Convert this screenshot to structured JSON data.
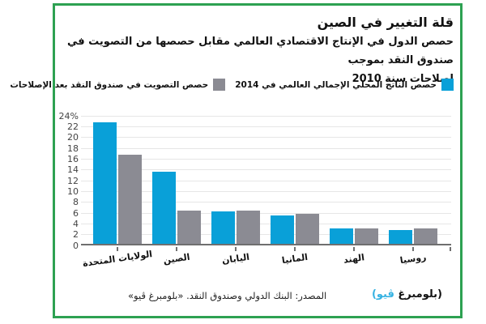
{
  "header": {
    "title": "قلة التغيير في الصين",
    "subtitle_lines": [
      "حصص الدول في الإنتاج الاقتصادي العالمي مقابل حصصها من التصويت في صندوق النقد بموجب",
      "إصلاحات سنة 2010"
    ]
  },
  "legend": {
    "items": [
      {
        "label": "حصص الناتج المحلي الإجمالي العالمي في 2014",
        "color": "#09a0d8"
      },
      {
        "label": "حصص التصويت في صندوق النقد بعد الإصلاحات",
        "color": "#8b8b93"
      }
    ]
  },
  "chart_data": {
    "type": "bar",
    "title": "قلة التغيير في الصين",
    "xlabel": "",
    "ylabel": "",
    "ylim": [
      0,
      24
    ],
    "grid": true,
    "legend_position": "top",
    "categories": [
      "الولايات المتحدة",
      "الصين",
      "اليابان",
      "المانيا",
      "الهند",
      "روسيا"
    ],
    "series": [
      {
        "name": "حصص الناتج المحلي الإجمالي العالمي في 2014",
        "color": "#09a0d8",
        "values": [
          22.5,
          13.4,
          6.0,
          5.2,
          2.9,
          2.5
        ]
      },
      {
        "name": "حصص التصويت في صندوق النقد بعد الإصلاحات",
        "color": "#8b8b93",
        "values": [
          16.5,
          6.1,
          6.2,
          5.6,
          2.8,
          2.9
        ]
      }
    ],
    "y_ticks": [
      {
        "value": 24,
        "label": "24%"
      },
      {
        "value": 22,
        "label": "22"
      },
      {
        "value": 20,
        "label": "20"
      },
      {
        "value": 18,
        "label": "18"
      },
      {
        "value": 16,
        "label": "16"
      },
      {
        "value": 14,
        "label": "14"
      },
      {
        "value": 12,
        "label": "12"
      },
      {
        "value": 10,
        "label": "10"
      },
      {
        "value": 8,
        "label": "8"
      },
      {
        "value": 6,
        "label": "6"
      },
      {
        "value": 4,
        "label": "4"
      },
      {
        "value": 2,
        "label": "2"
      },
      {
        "value": 0,
        "label": "0"
      }
    ]
  },
  "footer": {
    "source": "المصدر: البنك الدولي وصندوق النقد. «بلومبرغ ڤيو»",
    "brand_black": "(بلومبرغ",
    "brand_blue": "ڤيو)"
  },
  "colors": {
    "border_green": "#2da152",
    "gdp_blue": "#09a0d8",
    "vote_gray": "#8b8b93",
    "axis": "#6f6f6f",
    "gridline": "#e6e6e6",
    "brand_blue": "#35b2e2"
  }
}
